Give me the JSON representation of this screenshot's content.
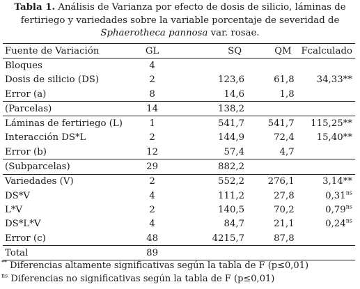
{
  "caption": {
    "label": "Tabla 1.",
    "text": "Análisis de Varianza por efecto de dosis de silicio, láminas de fertiriego y variedades sobre la variable porcentaje de severidad de",
    "species": "Sphaerotheca  pannosa",
    "text_end": "var. rosae."
  },
  "table": {
    "headers": {
      "source": "Fuente de Variación",
      "gl": "GL",
      "sq": "SQ",
      "qm": "QM",
      "fcalc": "Fcalculado"
    },
    "rows": [
      {
        "source": "Bloques",
        "gl": "4",
        "sq": "",
        "qm": "",
        "f": "",
        "sig": ""
      },
      {
        "source": "Dosis de silicio (DS)",
        "gl": "2",
        "sq": "123,6",
        "qm": "61,8",
        "f": "34,33",
        "sig": "**"
      },
      {
        "source": "Error (a)",
        "gl": "8",
        "sq": "14,6",
        "qm": "1,8",
        "f": "",
        "sig": ""
      },
      {
        "source": "(Parcelas)",
        "gl": "14",
        "sq": "138,2",
        "qm": "",
        "f": "",
        "sig": ""
      },
      {
        "source": "Láminas de fertiriego (L)",
        "gl": "1",
        "sq": "541,7",
        "qm": "541,7",
        "f": "115,25",
        "sig": "**"
      },
      {
        "source": "Interacción DS*L",
        "gl": "2",
        "sq": "144,9",
        "qm": "72,4",
        "f": "15,40",
        "sig": "**"
      },
      {
        "source": "Error (b)",
        "gl": "12",
        "sq": "57,4",
        "qm": "4,7",
        "f": "",
        "sig": ""
      },
      {
        "source": "(Subparcelas)",
        "gl": "29",
        "sq": "882,2",
        "qm": "",
        "f": "",
        "sig": ""
      },
      {
        "source": "Variedades (V)",
        "gl": "2",
        "sq": "552,2",
        "qm": "276,1",
        "f": "3,14",
        "sig": "**"
      },
      {
        "source": "DS*V",
        "gl": "4",
        "sq": "111,2",
        "qm": "27,8",
        "f": "0,31",
        "sig": "ns"
      },
      {
        "source": "L*V",
        "gl": "2",
        "sq": "140,5",
        "qm": "70,2",
        "f": "0,79",
        "sig": "ns"
      },
      {
        "source": "DS*L*V",
        "gl": "4",
        "sq": "84,7",
        "qm": "21,1",
        "f": "0,24",
        "sig": "ns"
      },
      {
        "source": "Error (c)",
        "gl": "48",
        "sq": "4215,7",
        "qm": "87,8",
        "f": "",
        "sig": ""
      },
      {
        "source": "Total",
        "gl": "89",
        "sq": "",
        "qm": "",
        "f": "",
        "sig": ""
      }
    ]
  },
  "footnotes": [
    {
      "mark": "**",
      "text": "Diferencias altamente significativas según la tabla de F (p≤0,01)"
    },
    {
      "mark": "ns",
      "text": "Diferencias no significativas según la tabla de F (p≤0,01)"
    }
  ]
}
